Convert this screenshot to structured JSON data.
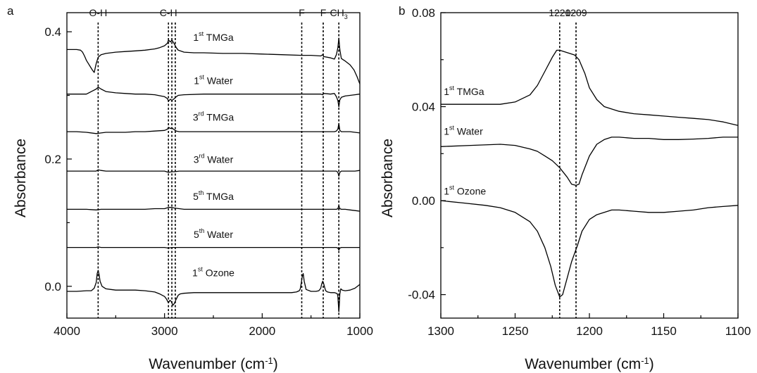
{
  "chart_data": [
    {
      "panel_label": "a",
      "type": "line",
      "xlabel": "Wavenumber (cm",
      "xlabel_sup": "-1",
      "xlabel_end": ")",
      "ylabel": "Absorbance",
      "xlim": [
        4000,
        1000
      ],
      "ylim": [
        -0.05,
        0.43
      ],
      "xticks": [
        4000,
        3000,
        2000,
        1000
      ],
      "xticklabels": [
        "4000",
        "3000",
        "2000",
        "1000"
      ],
      "yticks": [
        0.0,
        0.2,
        0.4
      ],
      "yticklabels": [
        "0.0",
        "0.2",
        "0.4"
      ],
      "grid": false,
      "legend": "none",
      "markers": [
        {
          "x": 3680,
          "label": "O-H"
        },
        {
          "x": 2960,
          "label": "C-H"
        },
        {
          "x": 2925,
          "label": ""
        },
        {
          "x": 2890,
          "label": ""
        },
        {
          "x": 1595,
          "label": "F"
        },
        {
          "x": 1375,
          "label": "F"
        },
        {
          "x": 1215,
          "label": "CH",
          "label_sub": "3"
        }
      ],
      "series": [
        {
          "name_pre": "1",
          "name_sup": "st",
          "name_post": " TMGa",
          "label_x": 2500,
          "label_y": 0.386,
          "x": [
            4000,
            3900,
            3860,
            3840,
            3820,
            3800,
            3780,
            3760,
            3740,
            3720,
            3700,
            3680,
            3650,
            3600,
            3500,
            3400,
            3300,
            3200,
            3100,
            3050,
            3000,
            2970,
            2960,
            2940,
            2925,
            2900,
            2880,
            2860,
            2800,
            2700,
            2600,
            2400,
            2200,
            2000,
            1800,
            1600,
            1500,
            1400,
            1380,
            1370,
            1300,
            1260,
            1240,
            1225,
            1215,
            1205,
            1190,
            1170,
            1150,
            1100,
            1060,
            1030,
            1000
          ],
          "y": [
            0.372,
            0.372,
            0.371,
            0.368,
            0.362,
            0.355,
            0.35,
            0.345,
            0.34,
            0.336,
            0.35,
            0.36,
            0.364,
            0.366,
            0.368,
            0.369,
            0.37,
            0.371,
            0.373,
            0.375,
            0.378,
            0.382,
            0.387,
            0.384,
            0.387,
            0.381,
            0.375,
            0.371,
            0.368,
            0.367,
            0.367,
            0.366,
            0.366,
            0.365,
            0.364,
            0.363,
            0.363,
            0.362,
            0.364,
            0.361,
            0.359,
            0.357,
            0.364,
            0.375,
            0.39,
            0.372,
            0.358,
            0.356,
            0.354,
            0.348,
            0.34,
            0.33,
            0.318
          ]
        },
        {
          "name_pre": "1",
          "name_sup": "st",
          "name_post": " Water",
          "label_x": 2500,
          "label_y": 0.318,
          "x": [
            4000,
            3900,
            3800,
            3750,
            3700,
            3680,
            3650,
            3600,
            3500,
            3400,
            3300,
            3200,
            3100,
            3000,
            2970,
            2960,
            2940,
            2925,
            2900,
            2880,
            2860,
            2800,
            2600,
            2400,
            2200,
            2000,
            1800,
            1600,
            1500,
            1400,
            1380,
            1370,
            1300,
            1260,
            1240,
            1225,
            1215,
            1205,
            1190,
            1150,
            1100,
            1050,
            1000
          ],
          "y": [
            0.302,
            0.302,
            0.302,
            0.306,
            0.31,
            0.313,
            0.31,
            0.306,
            0.304,
            0.303,
            0.302,
            0.302,
            0.301,
            0.298,
            0.295,
            0.291,
            0.294,
            0.292,
            0.295,
            0.298,
            0.3,
            0.301,
            0.302,
            0.302,
            0.302,
            0.302,
            0.302,
            0.302,
            0.302,
            0.302,
            0.301,
            0.303,
            0.302,
            0.303,
            0.298,
            0.292,
            0.282,
            0.293,
            0.297,
            0.299,
            0.3,
            0.301,
            0.302
          ]
        },
        {
          "name_pre": "3",
          "name_sup": "rd",
          "name_post": " TMGa",
          "label_x": 2500,
          "label_y": 0.26,
          "x": [
            4000,
            3900,
            3800,
            3700,
            3650,
            3600,
            3500,
            3400,
            3300,
            3200,
            3100,
            3000,
            2970,
            2960,
            2940,
            2925,
            2900,
            2880,
            2850,
            2800,
            2600,
            2400,
            2200,
            2000,
            1800,
            1600,
            1500,
            1400,
            1380,
            1300,
            1260,
            1240,
            1225,
            1215,
            1205,
            1190,
            1150,
            1100,
            1050,
            1000
          ],
          "y": [
            0.243,
            0.243,
            0.242,
            0.24,
            0.241,
            0.242,
            0.242,
            0.242,
            0.243,
            0.243,
            0.244,
            0.245,
            0.247,
            0.25,
            0.248,
            0.249,
            0.246,
            0.244,
            0.243,
            0.243,
            0.243,
            0.243,
            0.243,
            0.243,
            0.243,
            0.243,
            0.243,
            0.243,
            0.243,
            0.243,
            0.243,
            0.244,
            0.247,
            0.256,
            0.245,
            0.243,
            0.243,
            0.243,
            0.242,
            0.241
          ]
        },
        {
          "name_pre": "3",
          "name_sup": "rd",
          "name_post": " Water",
          "label_x": 2500,
          "label_y": 0.194,
          "x": [
            4000,
            3900,
            3800,
            3700,
            3680,
            3650,
            3600,
            3500,
            3400,
            3300,
            3200,
            3100,
            3000,
            2960,
            2925,
            2900,
            2850,
            2800,
            2600,
            2400,
            2200,
            2000,
            1800,
            1600,
            1400,
            1300,
            1240,
            1225,
            1215,
            1205,
            1190,
            1150,
            1100,
            1050,
            1000
          ],
          "y": [
            0.181,
            0.181,
            0.181,
            0.181,
            0.183,
            0.182,
            0.181,
            0.181,
            0.181,
            0.181,
            0.181,
            0.181,
            0.181,
            0.179,
            0.18,
            0.18,
            0.181,
            0.181,
            0.181,
            0.181,
            0.181,
            0.181,
            0.181,
            0.181,
            0.181,
            0.181,
            0.181,
            0.179,
            0.173,
            0.179,
            0.181,
            0.181,
            0.181,
            0.181,
            0.182
          ]
        },
        {
          "name_pre": "5",
          "name_sup": "th",
          "name_post": " TMGa",
          "label_x": 2500,
          "label_y": 0.136,
          "x": [
            4000,
            3900,
            3800,
            3700,
            3650,
            3600,
            3500,
            3400,
            3300,
            3200,
            3100,
            3000,
            2960,
            2925,
            2900,
            2850,
            2800,
            2600,
            2400,
            2200,
            2000,
            1800,
            1600,
            1400,
            1300,
            1240,
            1225,
            1215,
            1205,
            1190,
            1150,
            1100,
            1050,
            1000
          ],
          "y": [
            0.121,
            0.121,
            0.121,
            0.12,
            0.121,
            0.121,
            0.121,
            0.121,
            0.121,
            0.121,
            0.122,
            0.122,
            0.124,
            0.124,
            0.123,
            0.122,
            0.121,
            0.121,
            0.121,
            0.121,
            0.121,
            0.121,
            0.121,
            0.121,
            0.121,
            0.121,
            0.122,
            0.127,
            0.122,
            0.121,
            0.121,
            0.12,
            0.119,
            0.118
          ]
        },
        {
          "name_pre": "5",
          "name_sup": "th",
          "name_post": " Water",
          "label_x": 2500,
          "label_y": 0.076,
          "x": [
            4000,
            3800,
            3700,
            3680,
            3650,
            3500,
            3200,
            3000,
            2960,
            2925,
            2900,
            2800,
            2600,
            2400,
            2000,
            1600,
            1400,
            1300,
            1240,
            1225,
            1215,
            1205,
            1190,
            1100,
            1000
          ],
          "y": [
            0.061,
            0.061,
            0.061,
            0.062,
            0.061,
            0.061,
            0.061,
            0.061,
            0.06,
            0.061,
            0.061,
            0.061,
            0.061,
            0.061,
            0.061,
            0.061,
            0.061,
            0.061,
            0.061,
            0.06,
            0.057,
            0.06,
            0.061,
            0.061,
            0.061
          ]
        },
        {
          "name_pre": "1",
          "name_sup": "st",
          "name_post": " Ozone",
          "label_x": 2500,
          "label_y": 0.016,
          "x": [
            4000,
            3900,
            3800,
            3750,
            3720,
            3700,
            3690,
            3680,
            3670,
            3660,
            3640,
            3600,
            3550,
            3500,
            3400,
            3300,
            3200,
            3100,
            3050,
            3000,
            2980,
            2960,
            2945,
            2930,
            2915,
            2900,
            2880,
            2860,
            2840,
            2800,
            2700,
            2600,
            2400,
            2200,
            2000,
            1800,
            1700,
            1650,
            1620,
            1610,
            1600,
            1590,
            1580,
            1570,
            1550,
            1500,
            1450,
            1420,
            1400,
            1390,
            1380,
            1370,
            1360,
            1350,
            1330,
            1300,
            1260,
            1240,
            1230,
            1225,
            1220,
            1215,
            1210,
            1205,
            1195,
            1180,
            1150,
            1100,
            1050,
            1000
          ],
          "y": [
            -0.008,
            -0.008,
            -0.007,
            -0.007,
            -0.003,
            0.006,
            0.02,
            0.025,
            0.018,
            0.008,
            0.0,
            -0.004,
            -0.005,
            -0.006,
            -0.006,
            -0.006,
            -0.007,
            -0.009,
            -0.012,
            -0.016,
            -0.02,
            -0.026,
            -0.022,
            -0.024,
            -0.03,
            -0.027,
            -0.02,
            -0.014,
            -0.012,
            -0.011,
            -0.01,
            -0.01,
            -0.01,
            -0.01,
            -0.01,
            -0.01,
            -0.01,
            -0.009,
            -0.007,
            -0.004,
            0.005,
            0.015,
            0.02,
            0.008,
            -0.005,
            -0.008,
            -0.008,
            -0.007,
            -0.003,
            0.004,
            0.008,
            0.004,
            -0.002,
            -0.007,
            -0.009,
            -0.01,
            -0.01,
            -0.011,
            -0.012,
            -0.016,
            -0.028,
            -0.04,
            -0.028,
            -0.012,
            -0.004,
            -0.006,
            -0.007,
            -0.006,
            -0.003,
            0.003
          ]
        }
      ]
    },
    {
      "panel_label": "b",
      "type": "line",
      "xlabel": "Wavenumber (cm",
      "xlabel_sup": "-1",
      "xlabel_end": ")",
      "ylabel": "Absorbance",
      "xlim": [
        1300,
        1100
      ],
      "ylim": [
        -0.05,
        0.08
      ],
      "xticks": [
        1300,
        1250,
        1200,
        1150,
        1100
      ],
      "xticklabels": [
        "1300",
        "1250",
        "1200",
        "1150",
        "1100"
      ],
      "yticks": [
        0.08,
        0.04,
        0.0,
        -0.04
      ],
      "yticklabels": [
        "0.08",
        "0.04",
        "0.00",
        "-0.04"
      ],
      "grid": false,
      "legend": "none",
      "markers": [
        {
          "x": 1220,
          "label": "1220"
        },
        {
          "x": 1209,
          "label": "1209"
        }
      ],
      "series": [
        {
          "name_pre": "1",
          "name_sup": "st",
          "name_post": " TMGa",
          "label_x": 1298,
          "label_y": 0.045,
          "x": [
            1300,
            1280,
            1260,
            1250,
            1240,
            1235,
            1230,
            1225,
            1222,
            1220,
            1215,
            1210,
            1207,
            1203,
            1200,
            1195,
            1190,
            1185,
            1180,
            1170,
            1160,
            1150,
            1140,
            1130,
            1120,
            1110,
            1100
          ],
          "y": [
            0.041,
            0.041,
            0.041,
            0.042,
            0.045,
            0.049,
            0.055,
            0.061,
            0.064,
            0.064,
            0.063,
            0.062,
            0.06,
            0.054,
            0.048,
            0.043,
            0.04,
            0.039,
            0.038,
            0.037,
            0.0365,
            0.036,
            0.0355,
            0.035,
            0.0345,
            0.0335,
            0.032
          ]
        },
        {
          "name_pre": "1",
          "name_sup": "st",
          "name_post": " Water",
          "label_x": 1298,
          "label_y": 0.028,
          "x": [
            1300,
            1280,
            1260,
            1250,
            1240,
            1235,
            1230,
            1225,
            1220,
            1215,
            1212,
            1209,
            1207,
            1205,
            1200,
            1195,
            1190,
            1185,
            1180,
            1170,
            1160,
            1150,
            1140,
            1130,
            1120,
            1110,
            1100
          ],
          "y": [
            0.023,
            0.0235,
            0.024,
            0.0235,
            0.022,
            0.021,
            0.019,
            0.017,
            0.014,
            0.01,
            0.007,
            0.0065,
            0.007,
            0.011,
            0.019,
            0.024,
            0.026,
            0.027,
            0.027,
            0.0265,
            0.0265,
            0.026,
            0.026,
            0.0262,
            0.0265,
            0.027,
            0.027
          ]
        },
        {
          "name_pre": "1",
          "name_sup": "st",
          "name_post": " Ozone",
          "label_x": 1298,
          "label_y": 0.0025,
          "x": [
            1300,
            1285,
            1270,
            1260,
            1250,
            1240,
            1235,
            1230,
            1226,
            1223,
            1220,
            1218,
            1215,
            1212,
            1208,
            1205,
            1200,
            1195,
            1190,
            1185,
            1180,
            1170,
            1160,
            1150,
            1140,
            1130,
            1120,
            1110,
            1100
          ],
          "y": [
            0.0,
            -0.001,
            -0.002,
            -0.003,
            -0.005,
            -0.009,
            -0.013,
            -0.02,
            -0.028,
            -0.036,
            -0.041,
            -0.04,
            -0.033,
            -0.026,
            -0.019,
            -0.013,
            -0.008,
            -0.006,
            -0.005,
            -0.004,
            -0.004,
            -0.0045,
            -0.005,
            -0.005,
            -0.0045,
            -0.004,
            -0.003,
            -0.0025,
            -0.002
          ]
        }
      ]
    }
  ]
}
